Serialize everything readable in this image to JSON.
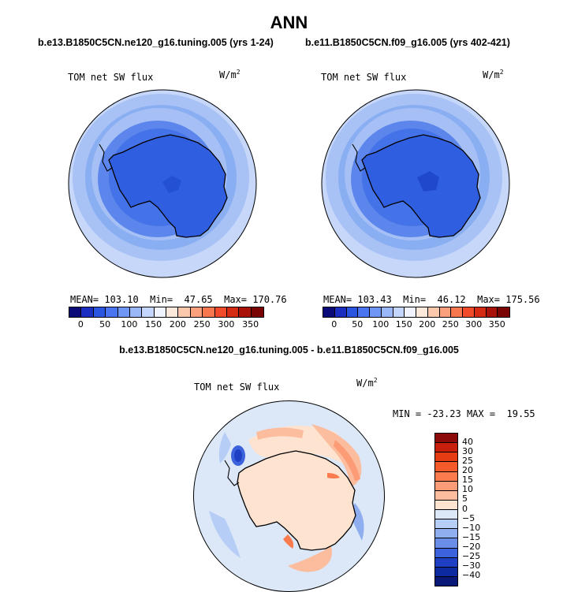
{
  "page": {
    "title": "ANN",
    "diff_title": "b.e13.B1850C5CN.ne120_g16.tuning.005 - b.e11.B1850C5CN.f09_g16.005"
  },
  "panels": [
    {
      "case": "b.e13.B1850C5CN.ne120_g16.tuning.005 (yrs 1-24)",
      "variable": "TOM net SW flux",
      "units": "W/m",
      "units_sup": "2",
      "stats": {
        "mean_label": "MEAN=",
        "mean": "103.10",
        "min_label": "Min=",
        "min": "47.65",
        "max_label": "Max=",
        "max": "170.76"
      }
    },
    {
      "case": "b.e11.B1850C5CN.f09_g16.005 (yrs 402-421)",
      "variable": "TOM net SW flux",
      "units": "W/m",
      "units_sup": "2",
      "stats": {
        "mean_label": "MEAN=",
        "mean": "103.43",
        "min_label": "Min=",
        "min": "46.12",
        "max_label": "Max=",
        "max": "175.56"
      }
    }
  ],
  "abs_colorbar": {
    "labels": [
      "0",
      "50",
      "100",
      "150",
      "200",
      "250",
      "300",
      "350"
    ],
    "colors": [
      "#0a0a78",
      "#1a2fbf",
      "#2a55e0",
      "#4a75f0",
      "#6f96f5",
      "#9ab7f8",
      "#c4d6fb",
      "#eef3fd",
      "#fde8dc",
      "#fcc8ac",
      "#fba07c",
      "#f9774e",
      "#f04a2a",
      "#d52a14",
      "#a81208",
      "#7a0404"
    ]
  },
  "diff_panel": {
    "variable": "TOM net SW flux",
    "units": "W/m",
    "units_sup": "2",
    "stats": {
      "min_label": "MIN =",
      "min": "-23.23",
      "max_label": "MAX =",
      "max": "19.55"
    },
    "colorbar_labels": [
      "40",
      "30",
      "25",
      "20",
      "15",
      "10",
      "5",
      "0",
      "−5",
      "−10",
      "−15",
      "−20",
      "−25",
      "−30",
      "−40"
    ],
    "colorbar_colors": [
      "#8c0a0a",
      "#c8200c",
      "#e63c14",
      "#f55a2a",
      "#f97b4e",
      "#fb9c76",
      "#fcbc9e",
      "#fde3d0",
      "#dce8f8",
      "#b6cdf5",
      "#8faef0",
      "#6a8ee8",
      "#3c63dc",
      "#1f40c4",
      "#0d2aa0",
      "#0a1978"
    ]
  }
}
